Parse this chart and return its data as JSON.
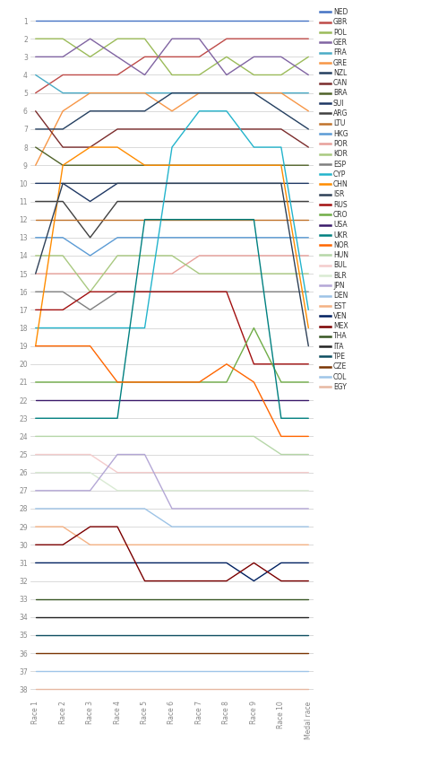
{
  "x_labels": [
    "Race 1",
    "Race 2",
    "Race 3",
    "Race 4",
    "Race 5",
    "Race 6",
    "Race 7",
    "Race 8",
    "Race 9",
    "Race 10",
    "Medal race"
  ],
  "series": [
    {
      "name": "NED",
      "color": "#4472C4",
      "data": [
        1,
        1,
        1,
        1,
        1,
        1,
        1,
        1,
        1,
        1,
        1
      ]
    },
    {
      "name": "GBR",
      "color": "#BE4B48",
      "data": [
        5,
        4,
        4,
        4,
        3,
        3,
        3,
        2,
        2,
        2,
        2
      ]
    },
    {
      "name": "POL",
      "color": "#9BBB59",
      "data": [
        2,
        2,
        3,
        2,
        2,
        4,
        4,
        3,
        4,
        4,
        3
      ]
    },
    {
      "name": "GER",
      "color": "#8064A2",
      "data": [
        3,
        3,
        2,
        3,
        4,
        2,
        2,
        4,
        3,
        3,
        4
      ]
    },
    {
      "name": "FRA",
      "color": "#4BACC6",
      "data": [
        4,
        5,
        5,
        5,
        5,
        5,
        5,
        5,
        5,
        5,
        5
      ]
    },
    {
      "name": "GRE",
      "color": "#F79646",
      "data": [
        9,
        6,
        5,
        5,
        5,
        6,
        5,
        5,
        5,
        5,
        6
      ]
    },
    {
      "name": "NZL",
      "color": "#243F60",
      "data": [
        7,
        7,
        6,
        6,
        6,
        5,
        5,
        5,
        5,
        6,
        7
      ]
    },
    {
      "name": "CAN",
      "color": "#7B2C2C",
      "data": [
        6,
        8,
        8,
        7,
        7,
        7,
        7,
        7,
        7,
        7,
        8
      ]
    },
    {
      "name": "BRA",
      "color": "#4F6228",
      "data": [
        8,
        9,
        9,
        9,
        9,
        9,
        9,
        9,
        9,
        9,
        9
      ]
    },
    {
      "name": "SUI",
      "color": "#1F3864",
      "data": [
        10,
        10,
        11,
        10,
        10,
        10,
        10,
        10,
        10,
        10,
        10
      ]
    },
    {
      "name": "ARG",
      "color": "#404040",
      "data": [
        11,
        11,
        13,
        11,
        11,
        11,
        11,
        11,
        11,
        11,
        11
      ]
    },
    {
      "name": "LTU",
      "color": "#C0722A",
      "data": [
        12,
        12,
        12,
        12,
        12,
        12,
        12,
        12,
        12,
        12,
        12
      ]
    },
    {
      "name": "HKG",
      "color": "#5B9BD5",
      "data": [
        13,
        13,
        14,
        13,
        13,
        13,
        13,
        13,
        13,
        13,
        13
      ]
    },
    {
      "name": "POR",
      "color": "#E8A09A",
      "data": [
        15,
        15,
        15,
        15,
        15,
        15,
        14,
        14,
        14,
        14,
        14
      ]
    },
    {
      "name": "KOR",
      "color": "#A9C980",
      "data": [
        14,
        14,
        16,
        14,
        14,
        14,
        15,
        15,
        15,
        15,
        15
      ]
    },
    {
      "name": "ESP",
      "color": "#7F7F7F",
      "data": [
        16,
        16,
        17,
        16,
        16,
        16,
        16,
        16,
        16,
        16,
        16
      ]
    },
    {
      "name": "CYP",
      "color": "#23B4CC",
      "data": [
        18,
        18,
        18,
        18,
        18,
        8,
        6,
        6,
        8,
        8,
        17
      ]
    },
    {
      "name": "CHN",
      "color": "#FF8C00",
      "data": [
        19,
        9,
        8,
        8,
        9,
        9,
        9,
        9,
        9,
        9,
        18
      ]
    },
    {
      "name": "ISR",
      "color": "#2E4057",
      "data": [
        15,
        10,
        10,
        10,
        10,
        10,
        10,
        10,
        10,
        10,
        19
      ]
    },
    {
      "name": "RUS",
      "color": "#A21010",
      "data": [
        17,
        17,
        16,
        16,
        16,
        16,
        16,
        16,
        20,
        20,
        20
      ]
    },
    {
      "name": "CRO",
      "color": "#70AD47",
      "data": [
        21,
        21,
        21,
        21,
        21,
        21,
        21,
        21,
        18,
        21,
        21
      ]
    },
    {
      "name": "USA",
      "color": "#3A1A6A",
      "data": [
        22,
        22,
        22,
        22,
        22,
        22,
        22,
        22,
        22,
        22,
        22
      ]
    },
    {
      "name": "UKR",
      "color": "#008080",
      "data": [
        23,
        23,
        23,
        23,
        12,
        12,
        12,
        12,
        12,
        23,
        23
      ]
    },
    {
      "name": "NOR",
      "color": "#FF6600",
      "data": [
        19,
        19,
        19,
        21,
        21,
        21,
        21,
        20,
        21,
        24,
        24
      ]
    },
    {
      "name": "HUN",
      "color": "#B6D7A8",
      "data": [
        24,
        24,
        24,
        24,
        24,
        24,
        24,
        24,
        24,
        25,
        25
      ]
    },
    {
      "name": "BUL",
      "color": "#F4CCCC",
      "data": [
        25,
        25,
        25,
        26,
        26,
        26,
        26,
        26,
        26,
        26,
        26
      ]
    },
    {
      "name": "BLR",
      "color": "#D9EAD3",
      "data": [
        26,
        26,
        26,
        27,
        27,
        27,
        27,
        27,
        27,
        27,
        27
      ]
    },
    {
      "name": "JPN",
      "color": "#B4A7D6",
      "data": [
        27,
        27,
        27,
        25,
        25,
        28,
        28,
        28,
        28,
        28,
        28
      ]
    },
    {
      "name": "DEN",
      "color": "#9DC3E6",
      "data": [
        28,
        28,
        28,
        28,
        28,
        29,
        29,
        29,
        29,
        29,
        29
      ]
    },
    {
      "name": "EST",
      "color": "#F4B183",
      "data": [
        29,
        29,
        30,
        30,
        30,
        30,
        30,
        30,
        30,
        30,
        30
      ]
    },
    {
      "name": "VEN",
      "color": "#002060",
      "data": [
        31,
        31,
        31,
        31,
        31,
        31,
        31,
        31,
        32,
        31,
        31
      ]
    },
    {
      "name": "MEX",
      "color": "#7B0000",
      "data": [
        30,
        30,
        29,
        29,
        32,
        32,
        32,
        32,
        31,
        32,
        32
      ]
    },
    {
      "name": "THA",
      "color": "#375623",
      "data": [
        33,
        33,
        33,
        33,
        33,
        33,
        33,
        33,
        33,
        33,
        33
      ]
    },
    {
      "name": "ITA",
      "color": "#222222",
      "data": [
        34,
        34,
        34,
        34,
        34,
        34,
        34,
        34,
        34,
        34,
        34
      ]
    },
    {
      "name": "TPE",
      "color": "#0D4D60",
      "data": [
        35,
        35,
        35,
        35,
        35,
        35,
        35,
        35,
        35,
        35,
        35
      ]
    },
    {
      "name": "CZE",
      "color": "#7A3503",
      "data": [
        36,
        36,
        36,
        36,
        36,
        36,
        36,
        36,
        36,
        36,
        36
      ]
    },
    {
      "name": "COL",
      "color": "#9FC5E8",
      "data": [
        37,
        37,
        37,
        37,
        37,
        37,
        37,
        37,
        37,
        37,
        37
      ]
    },
    {
      "name": "EGY",
      "color": "#E6B8A2",
      "data": [
        38,
        38,
        38,
        38,
        38,
        38,
        38,
        38,
        38,
        38,
        38
      ]
    }
  ]
}
